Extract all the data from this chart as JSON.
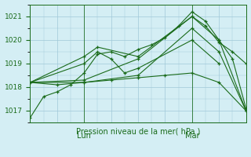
{
  "title": "Pression niveau de la mer( hPa )",
  "xlim": [
    0,
    48
  ],
  "ylim": [
    1016.5,
    1021.5
  ],
  "yticks": [
    1017,
    1018,
    1019,
    1020,
    1021
  ],
  "day_labels": [
    [
      "Lun",
      12
    ],
    [
      "Mar",
      36
    ]
  ],
  "bg_color": "#d4eef4",
  "grid_color": "#a0c8d8",
  "line_color": "#1a6b1a",
  "series": [
    [
      0,
      1016.7,
      3,
      1017.6,
      6,
      1017.8,
      9,
      1018.1,
      12,
      1018.6,
      15,
      1019.4,
      18,
      1019.5,
      21,
      1019.3,
      24,
      1019.6,
      27,
      1019.8,
      30,
      1020.1,
      33,
      1020.6,
      36,
      1021.2,
      39,
      1020.8,
      42,
      1020.0,
      45,
      1019.2,
      48,
      1017.1
    ],
    [
      0,
      1018.2,
      12,
      1018.3,
      24,
      1019.2,
      36,
      1021.0,
      39,
      1020.6,
      42,
      1019.9,
      45,
      1019.5,
      48,
      1019.0
    ],
    [
      0,
      1018.2,
      12,
      1019.0,
      15,
      1019.5,
      18,
      1019.2,
      21,
      1018.6,
      24,
      1018.8,
      36,
      1020.0,
      42,
      1019.0
    ],
    [
      0,
      1018.2,
      12,
      1019.3,
      15,
      1019.7,
      24,
      1019.3,
      36,
      1021.0,
      42,
      1020.0,
      48,
      1017.0
    ],
    [
      0,
      1018.2,
      12,
      1018.2,
      24,
      1018.5,
      36,
      1020.5,
      42,
      1019.5,
      48,
      1017.0
    ],
    [
      0,
      1018.2,
      6,
      1018.1,
      12,
      1018.2,
      18,
      1018.3,
      24,
      1018.4,
      30,
      1018.5,
      36,
      1018.6,
      42,
      1018.2,
      48,
      1017.0
    ]
  ]
}
